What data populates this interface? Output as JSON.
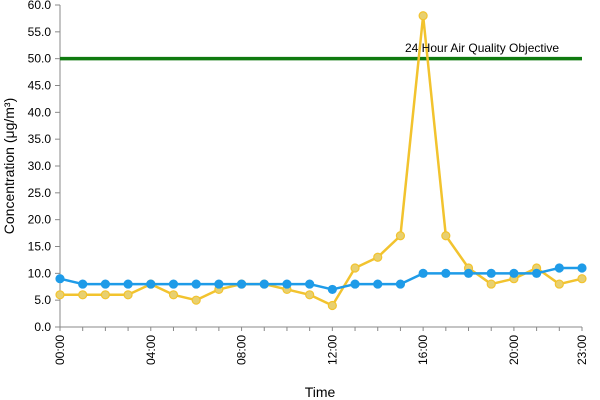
{
  "chart_data": {
    "type": "line",
    "title": "",
    "xlabel": "Time",
    "ylabel": "Concentration (μg/m³)",
    "ylim": [
      0,
      60
    ],
    "y_ticks": [
      "0.0",
      "5.0",
      "10.0",
      "15.0",
      "20.0",
      "25.0",
      "30.0",
      "35.0",
      "40.0",
      "45.0",
      "50.0",
      "55.0",
      "60.0"
    ],
    "x_tick_labels": [
      {
        "hour": 0,
        "label": "00:00"
      },
      {
        "hour": 4,
        "label": "04:00"
      },
      {
        "hour": 8,
        "label": "08:00"
      },
      {
        "hour": 12,
        "label": "12:00"
      },
      {
        "hour": 16,
        "label": "16:00"
      },
      {
        "hour": 20,
        "label": "20:00"
      },
      {
        "hour": 23,
        "label": "23:00"
      }
    ],
    "x": [
      "00:00",
      "01:00",
      "02:00",
      "03:00",
      "04:00",
      "05:00",
      "06:00",
      "07:00",
      "08:00",
      "09:00",
      "10:00",
      "11:00",
      "12:00",
      "13:00",
      "14:00",
      "15:00",
      "16:00",
      "17:00",
      "18:00",
      "19:00",
      "20:00",
      "21:00",
      "22:00",
      "23:00"
    ],
    "grid": false,
    "series": [
      {
        "color": "#f2c32e",
        "marker_fill": "#e8d070",
        "values": [
          6,
          6,
          6,
          6,
          8,
          6,
          5,
          7,
          8,
          8,
          7,
          6,
          4,
          11,
          13,
          17,
          58,
          17,
          11,
          8,
          9,
          11,
          8,
          9
        ]
      },
      {
        "color": "#1e9be8",
        "marker_fill": "#1e9be8",
        "values": [
          9,
          8,
          8,
          8,
          8,
          8,
          8,
          8,
          8,
          8,
          8,
          8,
          7,
          8,
          8,
          8,
          10,
          10,
          10,
          10,
          10,
          10,
          11,
          11
        ]
      }
    ],
    "reference_line": {
      "value": 50,
      "label": "24 Hour Air Quality Objective",
      "color": "#0f7a0f"
    }
  }
}
